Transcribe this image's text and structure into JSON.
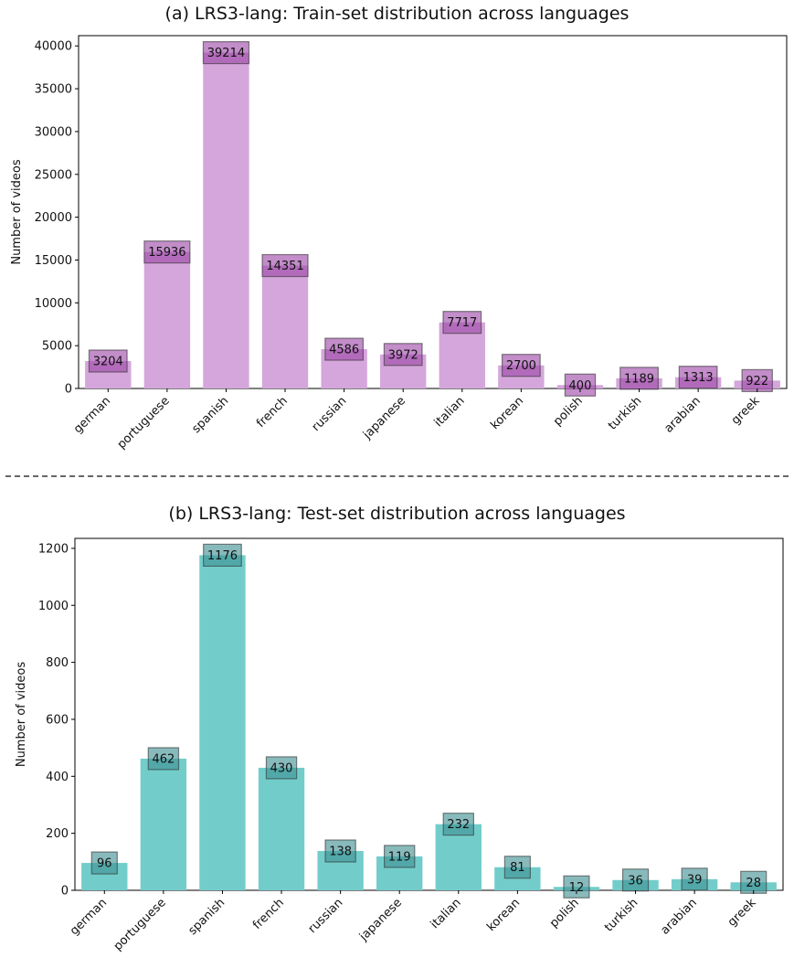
{
  "chart_data": [
    {
      "type": "bar",
      "title": "(a) LRS3-lang: Train-set distribution across languages",
      "xlabel": "",
      "ylabel": "Number of videos",
      "categories": [
        "german",
        "portuguese",
        "spanish",
        "french",
        "russian",
        "japanese",
        "italian",
        "korean",
        "polish",
        "turkish",
        "arabian",
        "greek"
      ],
      "values": [
        3204,
        15936,
        39214,
        14351,
        4586,
        3972,
        7717,
        2700,
        400,
        1189,
        1313,
        922
      ],
      "value_labels": [
        "3204",
        "15936",
        "39214",
        "14351",
        "4586",
        "3972",
        "7717",
        "2700",
        "400",
        "1189",
        "1313",
        "922"
      ],
      "ylim": [
        0,
        41200
      ],
      "yticks": [
        0,
        5000,
        10000,
        15000,
        20000,
        25000,
        30000,
        35000,
        40000
      ],
      "ytick_labels": [
        "0",
        "5000",
        "10000",
        "15000",
        "20000",
        "25000",
        "30000",
        "35000",
        "40000"
      ],
      "bar_color": "#d5a6db",
      "label_box_color": "#9d47a8",
      "grid": false
    },
    {
      "type": "bar",
      "title": "(b) LRS3-lang: Test-set distribution across languages",
      "xlabel": "",
      "ylabel": "Number of videos",
      "categories": [
        "german",
        "portuguese",
        "spanish",
        "french",
        "russian",
        "japanese",
        "italian",
        "korean",
        "polish",
        "turkish",
        "arabian",
        "greek"
      ],
      "values": [
        96,
        462,
        1176,
        430,
        138,
        119,
        232,
        81,
        12,
        36,
        39,
        28
      ],
      "value_labels": [
        "96",
        "462",
        "1176",
        "430",
        "138",
        "119",
        "232",
        "81",
        "12",
        "36",
        "39",
        "28"
      ],
      "ylim": [
        0,
        1235
      ],
      "yticks": [
        0,
        200,
        400,
        600,
        800,
        1000,
        1200
      ],
      "ytick_labels": [
        "0",
        "200",
        "400",
        "600",
        "800",
        "1000",
        "1200"
      ],
      "bar_color": "#72cdca",
      "label_box_color": "#3f8f93",
      "grid": false
    }
  ]
}
